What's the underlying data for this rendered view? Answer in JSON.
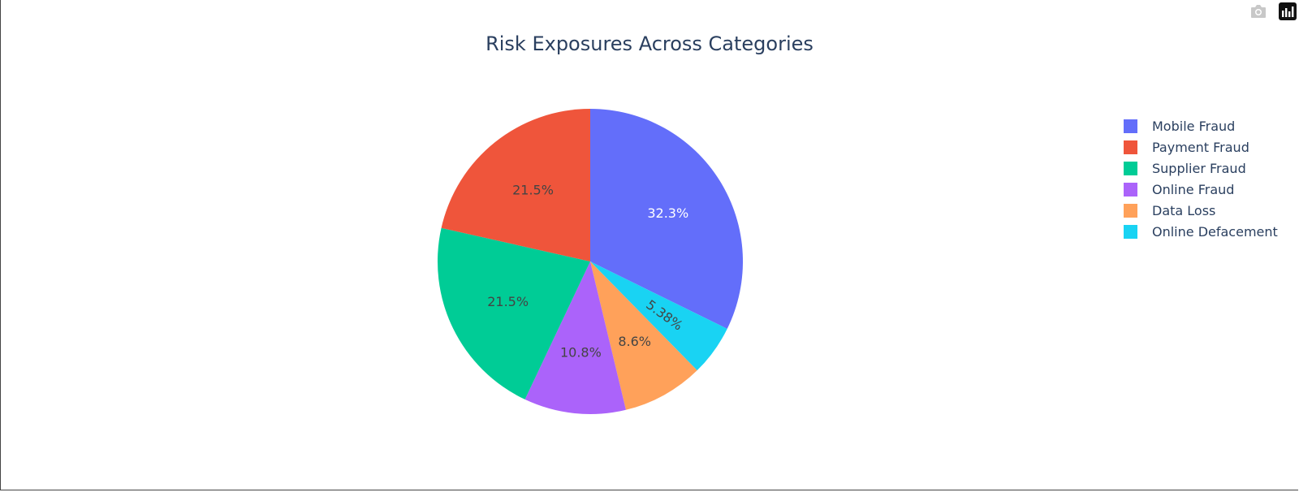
{
  "chart_data": {
    "type": "pie",
    "title": "Risk Exposures Across Categories",
    "slices": [
      {
        "label": "Mobile Fraud",
        "value": 32.3,
        "text": "32.3%",
        "color": "#636efa",
        "text_color": "#ffffff"
      },
      {
        "label": "Online Defacement",
        "value": 5.38,
        "text": "5.38%",
        "color": "#19d3f3",
        "text_color": "#444444"
      },
      {
        "label": "Data Loss",
        "value": 8.6,
        "text": "8.6%",
        "color": "#ffa15a",
        "text_color": "#444444"
      },
      {
        "label": "Online Fraud",
        "value": 10.8,
        "text": "10.8%",
        "color": "#ab63fa",
        "text_color": "#444444"
      },
      {
        "label": "Supplier Fraud",
        "value": 21.5,
        "text": "21.5%",
        "color": "#00cc96",
        "text_color": "#444444"
      },
      {
        "label": "Payment Fraud",
        "value": 21.5,
        "text": "21.5%",
        "color": "#ef553b",
        "text_color": "#444444"
      }
    ],
    "legend": {
      "placement": "top-right",
      "order": [
        "Mobile Fraud",
        "Payment Fraud",
        "Supplier Fraud",
        "Online Fraud",
        "Data Loss",
        "Online Defacement"
      ]
    }
  },
  "modebar": {
    "icons": [
      "camera-icon",
      "plotly-logo-icon"
    ]
  }
}
